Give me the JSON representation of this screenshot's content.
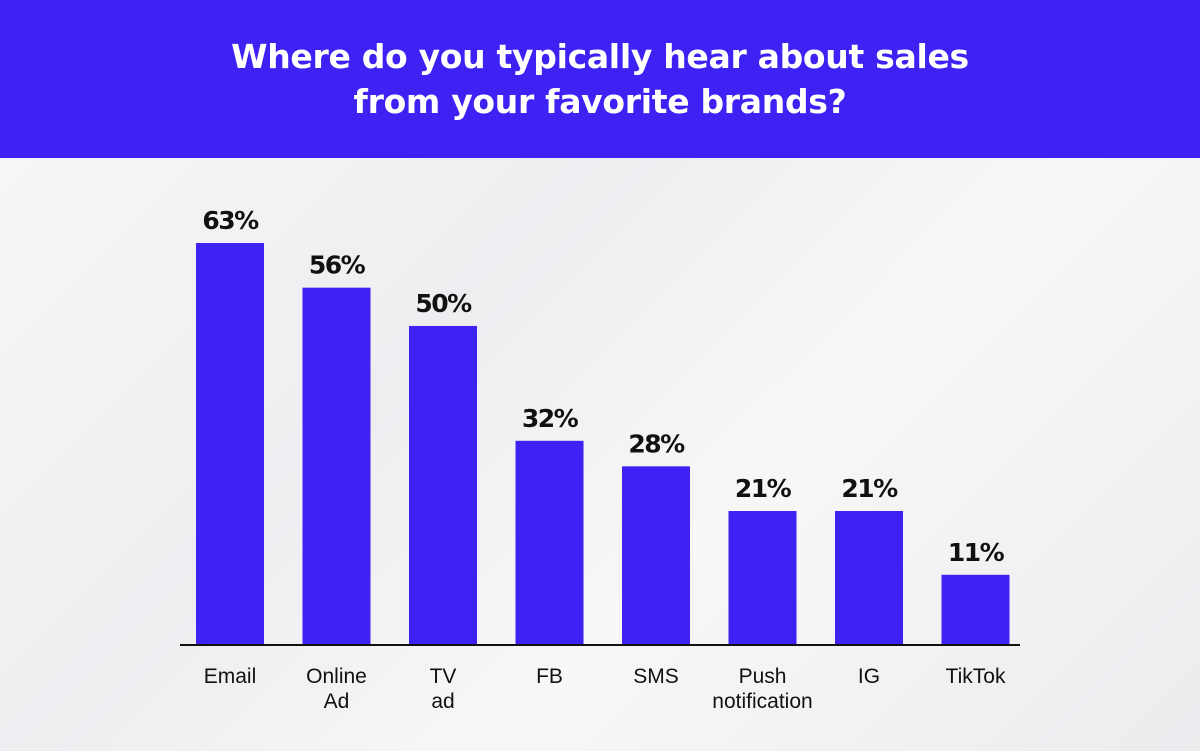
{
  "header": {
    "title_line1": "Where do you typically hear about sales",
    "title_line2": "from your favorite brands?"
  },
  "colors": {
    "bar": "#3e22f4",
    "header_bg": "#3e22f4"
  },
  "chart_data": {
    "type": "bar",
    "title": "Where do you typically hear about sales from your favorite brands?",
    "categories": [
      [
        "Email"
      ],
      [
        "Online",
        "Ad"
      ],
      [
        "TV",
        "ad"
      ],
      [
        "FB"
      ],
      [
        "SMS"
      ],
      [
        "Push",
        "notification"
      ],
      [
        "IG"
      ],
      [
        "TikTok"
      ]
    ],
    "values": [
      63,
      56,
      50,
      32,
      28,
      21,
      21,
      11
    ],
    "value_labels": [
      "63%",
      "56%",
      "50%",
      "32%",
      "28%",
      "21%",
      "21%",
      "11%"
    ],
    "ylim": [
      0,
      63
    ],
    "grid": false
  }
}
